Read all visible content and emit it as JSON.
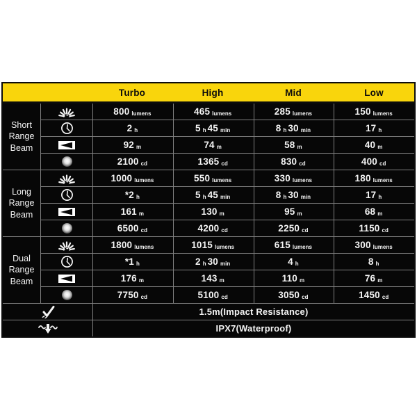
{
  "table": {
    "header": {
      "columns": [
        "Turbo",
        "High",
        "Mid",
        "Low"
      ]
    },
    "sections": [
      {
        "label_lines": [
          "Short",
          "Range",
          "Beam"
        ],
        "rows": [
          {
            "icon": "brightness-icon",
            "cells": [
              "800|lumens",
              "465|lumens",
              "285|lumens",
              "150|lumens"
            ]
          },
          {
            "icon": "runtime-icon",
            "cells": [
              "2|h",
              "5|h|45|min",
              "8|h|30|min",
              "17|h"
            ]
          },
          {
            "icon": "beam-distance-icon",
            "cells": [
              "92|m",
              "74|m",
              "58|m",
              "40|m"
            ]
          },
          {
            "icon": "beam-intensity-icon",
            "cells": [
              "2100|cd",
              "1365|cd",
              "830|cd",
              "400|cd"
            ]
          }
        ]
      },
      {
        "label_lines": [
          "Long",
          "Range",
          "Beam"
        ],
        "rows": [
          {
            "icon": "brightness-icon",
            "cells": [
              "1000|lumens",
              "550|lumens",
              "330|lumens",
              "180|lumens"
            ]
          },
          {
            "icon": "runtime-icon",
            "cells": [
              "*2|h",
              "5|h|45|min",
              "8|h|30|min",
              "17|h"
            ]
          },
          {
            "icon": "beam-distance-icon",
            "cells": [
              "161|m",
              "130|m",
              "95|m",
              "68|m"
            ]
          },
          {
            "icon": "beam-intensity-icon",
            "cells": [
              "6500|cd",
              "4200|cd",
              "2250|cd",
              "1150|cd"
            ]
          }
        ]
      },
      {
        "label_lines": [
          "Dual",
          "Range",
          "Beam"
        ],
        "rows": [
          {
            "icon": "brightness-icon",
            "cells": [
              "1800|lumens",
              "1015|lumens",
              "615|lumens",
              "300|lumens"
            ]
          },
          {
            "icon": "runtime-icon",
            "cells": [
              "*1|h",
              "2|h|30|min",
              "4|h",
              "8|h"
            ]
          },
          {
            "icon": "beam-distance-icon",
            "cells": [
              "176|m",
              "143|m",
              "110|m",
              "76|m"
            ]
          },
          {
            "icon": "beam-intensity-icon",
            "cells": [
              "7750|cd",
              "5100|cd",
              "3050|cd",
              "1450|cd"
            ]
          }
        ]
      }
    ],
    "footer_rows": [
      {
        "icon": "impact-resistance-icon",
        "text": "1.5m(Impact Resistance)"
      },
      {
        "icon": "waterproof-icon",
        "text": "IPX7(Waterproof)"
      }
    ]
  },
  "colors": {
    "header_yellow": "#f9d50c",
    "cell_black": "#070707",
    "grid_line": "#808080",
    "text_white": "#f4f4f4",
    "header_text": "#0b0b0b"
  }
}
